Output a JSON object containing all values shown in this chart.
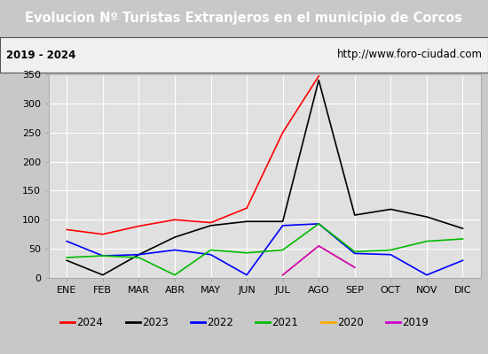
{
  "title": "Evolucion Nº Turistas Extranjeros en el municipio de Corcos",
  "subtitle_left": "2019 - 2024",
  "subtitle_right": "http://www.foro-ciudad.com",
  "months": [
    "ENE",
    "FEB",
    "MAR",
    "ABR",
    "MAY",
    "JUN",
    "JUL",
    "AGO",
    "SEP",
    "OCT",
    "NOV",
    "DIC"
  ],
  "ylim": [
    0,
    350
  ],
  "yticks": [
    0,
    50,
    100,
    150,
    200,
    250,
    300,
    350
  ],
  "series": {
    "2024": {
      "color": "#ff0000",
      "data": [
        83,
        75,
        89,
        100,
        95,
        120,
        250,
        347,
        null,
        null,
        null,
        null
      ]
    },
    "2023": {
      "color": "#000000",
      "data": [
        30,
        5,
        40,
        70,
        90,
        97,
        97,
        340,
        108,
        118,
        105,
        85
      ]
    },
    "2022": {
      "color": "#0000ff",
      "data": [
        63,
        38,
        40,
        48,
        40,
        5,
        90,
        93,
        42,
        40,
        5,
        30
      ]
    },
    "2021": {
      "color": "#00bb00",
      "data": [
        35,
        38,
        35,
        5,
        48,
        43,
        48,
        93,
        45,
        48,
        63,
        67
      ]
    },
    "2020": {
      "color": "#ffaa00",
      "data": [
        null,
        null,
        null,
        null,
        null,
        null,
        5,
        55,
        18,
        null,
        null,
        null
      ]
    },
    "2019": {
      "color": "#cc00cc",
      "data": [
        null,
        null,
        null,
        null,
        null,
        null,
        5,
        55,
        18,
        null,
        null,
        null
      ]
    }
  },
  "title_bg": "#4472c4",
  "title_color": "#ffffff",
  "subtitle_bg": "#f0f0f0",
  "plot_bg": "#e0e0e0",
  "outer_bg": "#c8c8c8",
  "grid_color": "#ffffff",
  "title_fontsize": 10.5,
  "subtitle_fontsize": 8.5,
  "axis_fontsize": 8,
  "legend_fontsize": 8.5
}
